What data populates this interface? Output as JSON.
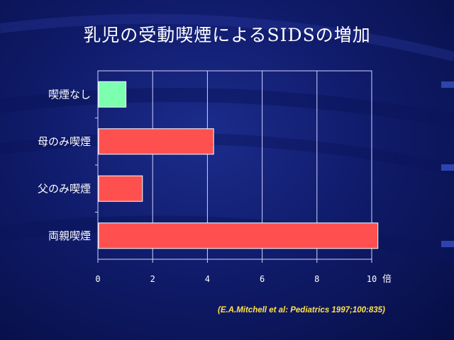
{
  "slide": {
    "title": "乳児の受動喫煙によるSIDSの増加",
    "citation": "(E.A.Mitchell et al: Pediatrics 1997;100:835)"
  },
  "chart_data": {
    "type": "bar",
    "orientation": "horizontal",
    "categories": [
      "喫煙なし",
      "母のみ喫煙",
      "父のみ喫煙",
      "両親喫煙"
    ],
    "values": [
      1.0,
      4.2,
      1.6,
      10.2
    ],
    "xlim": [
      0,
      10
    ],
    "xticks": [
      "0",
      "2",
      "4",
      "6",
      "8",
      "10"
    ],
    "xunit": "倍",
    "grid": true,
    "colors": [
      "#7dffb0",
      "#ff5050",
      "#ff5050",
      "#ff5050"
    ]
  }
}
